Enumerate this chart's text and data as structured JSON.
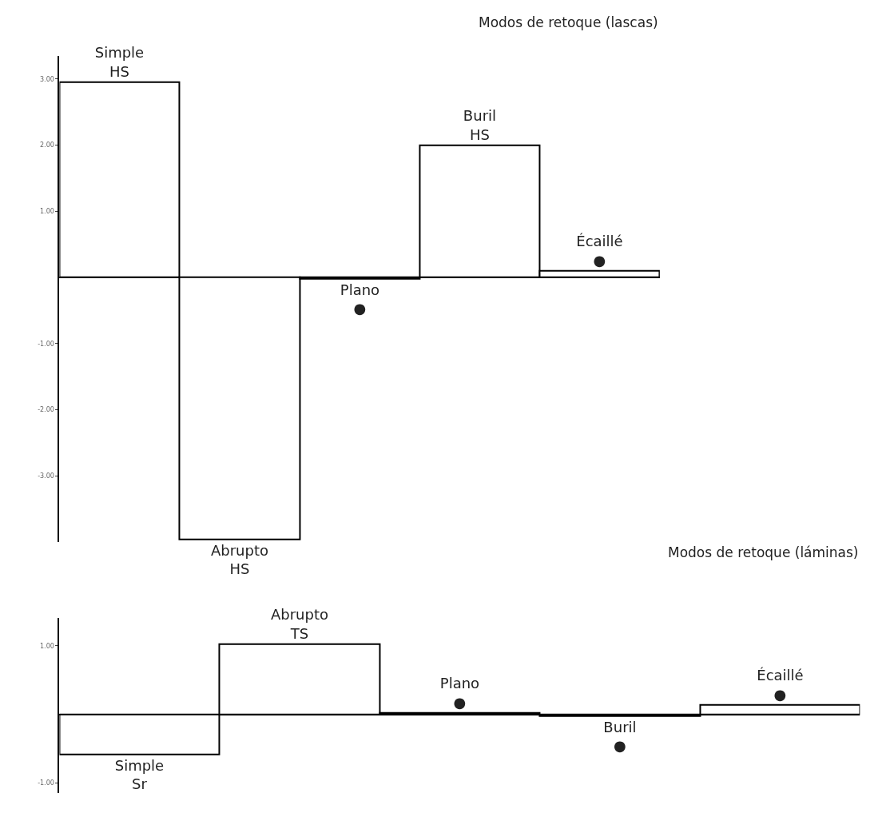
{
  "chart_data": [
    {
      "type": "bar",
      "title": "Modos de retoque (lascas)",
      "categories": [
        "Simple\nHS",
        "Abrupto\nHS",
        "Plano\n●",
        "Buril\nHS",
        "Écaillé\n●"
      ],
      "series": [
        {
          "color": "#ffffff",
          "values": [
            2.95,
            -3.96,
            -0.02,
            2.0,
            0.1
          ]
        }
      ],
      "ylim": [
        -4.0,
        3.35
      ],
      "yticks": [
        {
          "value": 3,
          "label": "3.00"
        },
        {
          "value": 2,
          "label": "2.00"
        },
        {
          "value": 1,
          "label": "1.00"
        },
        {
          "value": -1,
          "label": "-1.00"
        },
        {
          "value": -2,
          "label": "-2.00"
        },
        {
          "value": -3,
          "label": "-3.00"
        }
      ],
      "tick_labels": "y"
    },
    {
      "type": "bar",
      "title": "Modos de retoque (láminas)",
      "categories": [
        "Simple\nSr",
        "Abrupto\nTS",
        "Plano\n●",
        "Buril\n●",
        "Écaillé\n●"
      ],
      "series": [
        {
          "color": "#ffffff",
          "values": [
            -0.58,
            1.03,
            0.02,
            -0.02,
            0.14
          ]
        }
      ],
      "ylim": [
        -1.15,
        1.41
      ],
      "yticks": [
        {
          "value": 1,
          "label": "1.00"
        },
        {
          "value": -1,
          "label": "-1.00"
        }
      ],
      "tick_labels": "y"
    }
  ]
}
